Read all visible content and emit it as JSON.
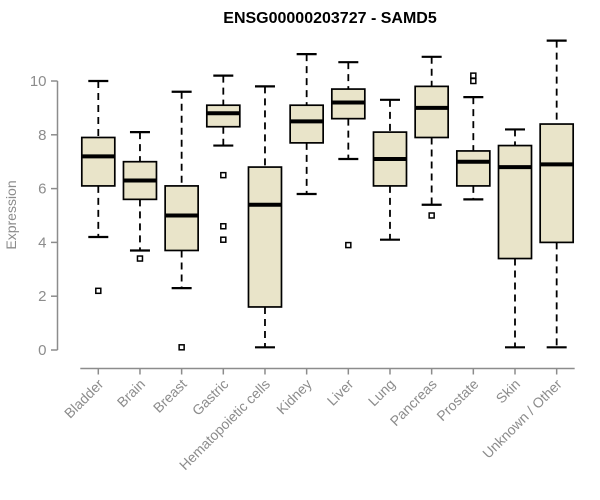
{
  "title": "ENSG00000203727 - SAMD5",
  "chart_data": {
    "type": "boxplot",
    "title": "ENSG00000203727 - SAMD5",
    "ylabel": "Expression",
    "ylim": [
      0,
      11.6
    ],
    "yticks": [
      0,
      2,
      4,
      6,
      8,
      10
    ],
    "grid": false,
    "legend": "none",
    "categories": [
      "Bladder",
      "Brain",
      "Breast",
      "Gastric",
      "Hematopoietic cells",
      "Kidney",
      "Liver",
      "Lung",
      "Pancreas",
      "Prostate",
      "Skin",
      "Unknown / Other"
    ],
    "series": [
      {
        "name": "Bladder",
        "whisker_low": 4.2,
        "q1": 6.1,
        "median": 7.2,
        "q3": 7.9,
        "whisker_high": 10.0,
        "outliers": [
          2.2
        ]
      },
      {
        "name": "Brain",
        "whisker_low": 3.7,
        "q1": 5.6,
        "median": 6.3,
        "q3": 7.0,
        "whisker_high": 8.1,
        "outliers": [
          3.4
        ]
      },
      {
        "name": "Breast",
        "whisker_low": 2.3,
        "q1": 3.7,
        "median": 5.0,
        "q3": 6.1,
        "whisker_high": 9.6,
        "outliers": [
          0.1
        ]
      },
      {
        "name": "Gastric",
        "whisker_low": 7.6,
        "q1": 8.3,
        "median": 8.8,
        "q3": 9.1,
        "whisker_high": 10.2,
        "outliers": [
          6.5,
          4.6,
          4.1
        ]
      },
      {
        "name": "Hematopoietic cells",
        "whisker_low": 0.1,
        "q1": 1.6,
        "median": 5.4,
        "q3": 6.8,
        "whisker_high": 9.8,
        "outliers": []
      },
      {
        "name": "Kidney",
        "whisker_low": 5.8,
        "q1": 7.7,
        "median": 8.5,
        "q3": 9.1,
        "whisker_high": 11.0,
        "outliers": []
      },
      {
        "name": "Liver",
        "whisker_low": 7.1,
        "q1": 8.6,
        "median": 9.2,
        "q3": 9.7,
        "whisker_high": 10.7,
        "outliers": [
          3.9
        ]
      },
      {
        "name": "Lung",
        "whisker_low": 4.1,
        "q1": 6.1,
        "median": 7.1,
        "q3": 8.1,
        "whisker_high": 9.3,
        "outliers": []
      },
      {
        "name": "Pancreas",
        "whisker_low": 5.4,
        "q1": 7.9,
        "median": 9.0,
        "q3": 9.8,
        "whisker_high": 10.9,
        "outliers": [
          5.0
        ]
      },
      {
        "name": "Prostate",
        "whisker_low": 5.6,
        "q1": 6.1,
        "median": 7.0,
        "q3": 7.4,
        "whisker_high": 9.4,
        "outliers": [
          10.2,
          10.0
        ]
      },
      {
        "name": "Skin",
        "whisker_low": 0.1,
        "q1": 3.4,
        "median": 6.8,
        "q3": 7.6,
        "whisker_high": 8.2,
        "outliers": []
      },
      {
        "name": "Unknown / Other",
        "whisker_low": 0.1,
        "q1": 4.0,
        "median": 6.9,
        "q3": 8.4,
        "whisker_high": 11.5,
        "outliers": []
      }
    ],
    "colors": {
      "box_fill": "#E9E4C9",
      "box_stroke": "#000000",
      "median": "#000000",
      "whisker": "#000000",
      "outlier_fill": "#ffffff",
      "axis": "#8C8C8C",
      "title": "#000000",
      "background": "#ffffff"
    }
  }
}
